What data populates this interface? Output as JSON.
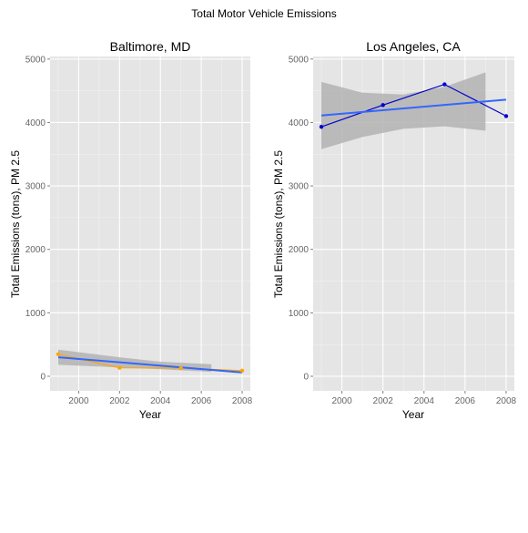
{
  "chart_data": {
    "title": "Total Motor Vehicle Emissions",
    "type": "line",
    "colors": {
      "panel_bg": "#e5e5e5",
      "grid": "#ffffff",
      "ci_band": "#b3b3b3",
      "trend": "#3366ff",
      "baltimore_series": "#ffa500",
      "la_series": "#0000cc"
    },
    "facets": [
      {
        "title": "Baltimore, MD",
        "xlabel": "Year",
        "ylabel": "Total Emissions (tons), PM 2.5",
        "xlim": [
          1998.6,
          2008.4
        ],
        "ylim": [
          -230,
          5040
        ],
        "xticks": [
          2000,
          2002,
          2004,
          2006,
          2008
        ],
        "yticks": [
          0,
          1000,
          2000,
          3000,
          4000,
          5000
        ],
        "series": {
          "x": [
            1999,
            2002,
            2005,
            2008
          ],
          "y": [
            347,
            134,
            130,
            88
          ]
        },
        "trend": {
          "x": [
            1999,
            2008
          ],
          "y": [
            300,
            60
          ]
        },
        "band": {
          "x": [
            1999,
            2002,
            2004,
            2006.5
          ],
          "upper": [
            420,
            300,
            230,
            190
          ],
          "lower": [
            180,
            140,
            110,
            70
          ]
        }
      },
      {
        "title": "Los Angeles, CA",
        "xlabel": "Year",
        "ylabel": "Total Emissions (tons), PM 2.5",
        "xlim": [
          1998.6,
          2008.4
        ],
        "ylim": [
          -230,
          5040
        ],
        "xticks": [
          2000,
          2002,
          2004,
          2006,
          2008
        ],
        "yticks": [
          0,
          1000,
          2000,
          3000,
          4000,
          5000
        ],
        "series": {
          "x": [
            1999,
            2002,
            2005,
            2008
          ],
          "y": [
            3931,
            4274,
            4601,
            4101
          ]
        },
        "trend": {
          "x": [
            1999,
            2008
          ],
          "y": [
            4110,
            4360
          ]
        },
        "band": {
          "x": [
            1999,
            2001,
            2003,
            2005,
            2007
          ],
          "upper": [
            4640,
            4470,
            4440,
            4560,
            4790
          ],
          "lower": [
            3580,
            3770,
            3900,
            3940,
            3870
          ]
        }
      }
    ]
  }
}
